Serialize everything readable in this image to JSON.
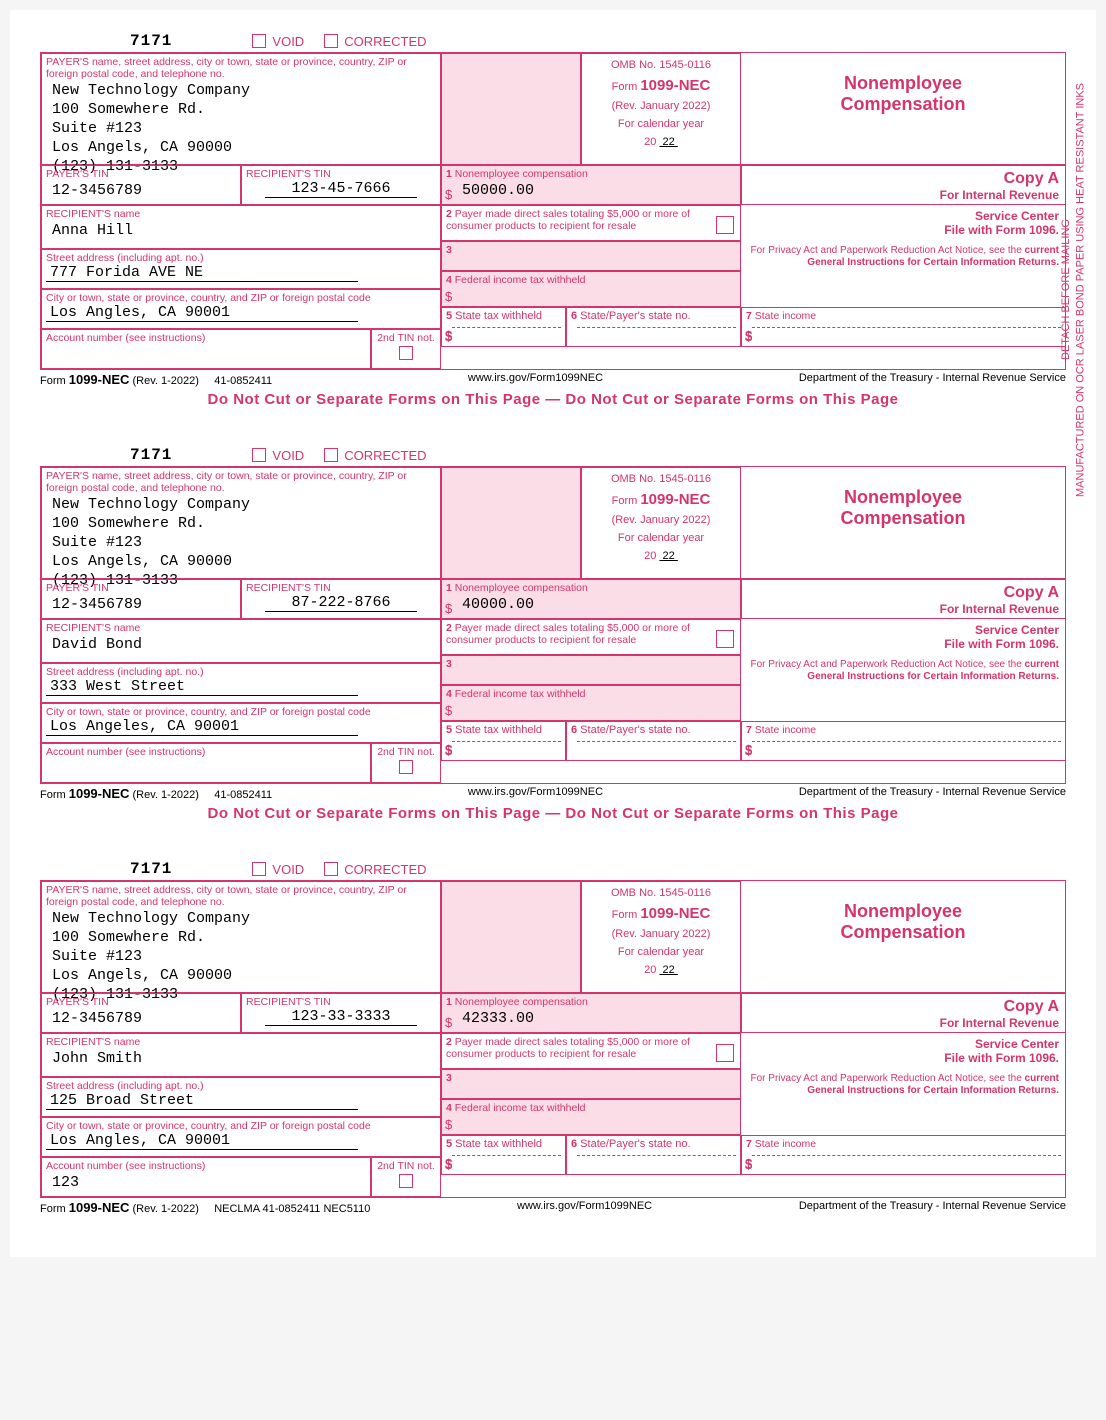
{
  "sideText": {
    "line1": "DETACH BEFORE MAILING",
    "line2": "MANUFACTURED ON OCR LASER BOND PAPER USING HEAT RESISTANT INKS"
  },
  "common": {
    "formCode": "7171",
    "void": "VOID",
    "corrected": "CORRECTED",
    "payerBoxLabel": "PAYER'S name, street address, city or town, state or province, country, ZIP or foreign postal code, and telephone no.",
    "payerTinLabel": "PAYER'S TIN",
    "recipTinLabel": "RECIPIENT'S TIN",
    "recipNameLabel": "RECIPIENT'S name",
    "streetLabel": "Street address (including apt. no.)",
    "cityLabel": "City or town, state or province, country, and ZIP or foreign postal code",
    "acctLabel": "Account number (see instructions)",
    "tin2Label": "2nd TIN not.",
    "omb": "OMB No. 1545-0116",
    "formName": "Form",
    "formNum": "1099-NEC",
    "rev": "(Rev. January 2022)",
    "calYear": "For calendar year",
    "yearPrefix": "20",
    "year": "22",
    "title1": "Nonemployee",
    "title2": "Compensation",
    "box1": "1 Nonemployee compensation",
    "box2": "2 Payer made direct sales totaling $5,000 or more of consumer products to recipient for resale",
    "box3": "3",
    "box4": "4 Federal income tax withheld",
    "box5": "5 State tax withheld",
    "box6": "6 State/Payer's state no.",
    "box7": "7 State income",
    "copyA": "Copy A",
    "copyA2": "For Internal Revenue",
    "copyA3": "Service Center",
    "copyA4": "File with Form 1096.",
    "privacy1": "For Privacy Act and Paperwork Reduction Act Notice, see the",
    "privacy2": "current General Instructions for Certain Information Returns.",
    "footerForm": "Form",
    "footerFormNum": "1099-NEC",
    "footerRev": "(Rev. 1-2022)",
    "footerCat": "41-0852411",
    "footerUrl": "www.irs.gov/Form1099NEC",
    "footerDept": "Department of the Treasury - Internal Revenue Service",
    "noSep": "Do Not Cut or Separate Forms on This Page — Do Not Cut or Separate Forms on This Page",
    "payerName": "New Technology Company",
    "payerAddr1": "100 Somewhere Rd.",
    "payerAddr2": "Suite #123",
    "payerAddr3": "Los Angels, CA 90000",
    "payerPhone": "(123) 131-3133",
    "payerTin": "12-3456789"
  },
  "forms": [
    {
      "recipTin": "123-45-7666",
      "box1val": "50000.00",
      "recipName": "Anna Hill",
      "street": "777 Forida AVE NE",
      "city": "Los Angles, CA 90001",
      "acct": "",
      "footerExtra": ""
    },
    {
      "recipTin": "87-222-8766",
      "box1val": "40000.00",
      "recipName": "David Bond",
      "street": "333 West Street",
      "city": "Los Angeles, CA 90001",
      "acct": "",
      "footerExtra": ""
    },
    {
      "recipTin": "123-33-3333",
      "box1val": "42333.00",
      "recipName": "John Smith",
      "street": "125 Broad Street",
      "city": "Los Angles, CA 90001",
      "acct": "123",
      "footerExtra": "NECLMA  41-0852411  NEC5110"
    }
  ]
}
